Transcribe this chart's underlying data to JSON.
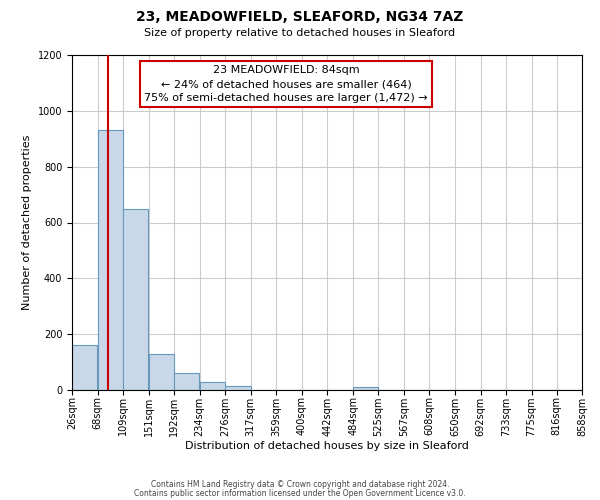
{
  "title": "23, MEADOWFIELD, SLEAFORD, NG34 7AZ",
  "subtitle": "Size of property relative to detached houses in Sleaford",
  "xlabel": "Distribution of detached houses by size in Sleaford",
  "ylabel": "Number of detached properties",
  "bar_left_edges": [
    26,
    68,
    109,
    151,
    192,
    234,
    276,
    317,
    359,
    400,
    442,
    484,
    525,
    567,
    608,
    650,
    692,
    733,
    775,
    816
  ],
  "bar_heights": [
    160,
    930,
    650,
    130,
    60,
    30,
    15,
    0,
    0,
    0,
    0,
    10,
    0,
    0,
    0,
    0,
    0,
    0,
    0,
    0
  ],
  "bin_width": 41,
  "bar_color": "#c8d8e8",
  "bar_edge_color": "#6699bb",
  "x_tick_labels": [
    "26sqm",
    "68sqm",
    "109sqm",
    "151sqm",
    "192sqm",
    "234sqm",
    "276sqm",
    "317sqm",
    "359sqm",
    "400sqm",
    "442sqm",
    "484sqm",
    "525sqm",
    "567sqm",
    "608sqm",
    "650sqm",
    "692sqm",
    "733sqm",
    "775sqm",
    "816sqm",
    "858sqm"
  ],
  "ylim": [
    0,
    1200
  ],
  "yticks": [
    0,
    200,
    400,
    600,
    800,
    1000,
    1200
  ],
  "vline_x": 84,
  "vline_color": "#cc0000",
  "annotation_title": "23 MEADOWFIELD: 84sqm",
  "annotation_line1": "← 24% of detached houses are smaller (464)",
  "annotation_line2": "75% of semi-detached houses are larger (1,472) →",
  "annotation_box_color": "#ffffff",
  "annotation_box_edgecolor": "#cc0000",
  "footer_line1": "Contains HM Land Registry data © Crown copyright and database right 2024.",
  "footer_line2": "Contains public sector information licensed under the Open Government Licence v3.0.",
  "background_color": "#ffffff",
  "grid_color": "#cccccc",
  "title_fontsize": 10,
  "subtitle_fontsize": 8,
  "ylabel_fontsize": 8,
  "xlabel_fontsize": 8,
  "tick_fontsize": 7,
  "annotation_fontsize": 8,
  "footer_fontsize": 5.5
}
